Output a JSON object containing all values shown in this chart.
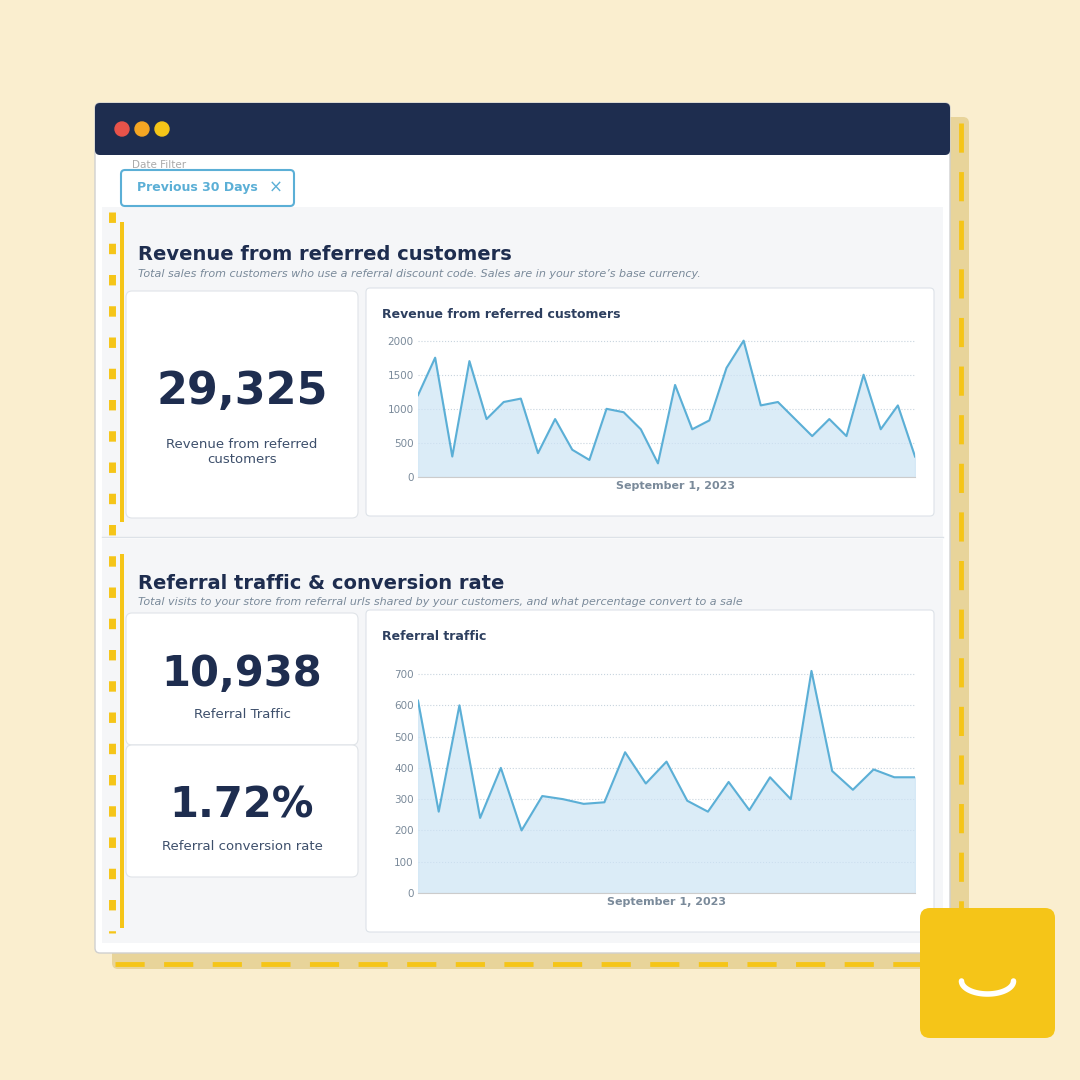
{
  "bg_color": "#faeecf",
  "window_bg": "#ffffff",
  "title_bar_color": "#1e2d4f",
  "date_filter_text": "Previous 30 Days",
  "section1_title": "Revenue from referred customers",
  "section1_subtitle": "Total sales from customers who use a referral discount code. Sales are in your store’s base currency.",
  "section1_metric_value": "29,325",
  "section1_metric_label": "Revenue from referred\ncustomers",
  "section1_chart_title": "Revenue from referred customers",
  "section1_x_label": "September 1, 2023",
  "section1_y_ticks": [
    0,
    500,
    1000,
    1500,
    2000
  ],
  "section1_data": [
    1200,
    1750,
    300,
    1700,
    850,
    1100,
    1150,
    350,
    850,
    400,
    250,
    1000,
    950,
    700,
    200,
    1350,
    700,
    830,
    1600,
    2000,
    1050,
    1100,
    850,
    600,
    850,
    600,
    1500,
    700,
    1050,
    300
  ],
  "section2_title": "Referral traffic & conversion rate",
  "section2_subtitle": "Total visits to your store from referral urls shared by your customers, and what percentage convert to a sale",
  "section2_metric1_value": "10,938",
  "section2_metric1_label": "Referral Traffic",
  "section2_metric2_value": "1.72%",
  "section2_metric2_label": "Referral conversion rate",
  "section2_chart_title": "Referral traffic",
  "section2_x_label": "September 1, 2023",
  "section2_y_ticks": [
    0,
    100,
    200,
    300,
    400,
    500,
    600,
    700
  ],
  "section2_data": [
    615,
    260,
    600,
    240,
    400,
    200,
    310,
    300,
    285,
    290,
    450,
    350,
    420,
    295,
    260,
    355,
    265,
    370,
    300,
    710,
    390,
    330,
    395,
    370,
    370
  ],
  "line_color": "#5bafd6",
  "fill_color": "#cde4f5",
  "chart_bg": "#ffffff",
  "dashed_border_color": "#f5c518",
  "left_accent_color": "#f5c518",
  "metric_value_color": "#1e2d4f",
  "metric_label_color": "#3d4f6b",
  "section_title_color": "#1e2d4f",
  "section_subtitle_color": "#7a8a9a",
  "chart_title_color": "#2d3f5f",
  "axis_label_color": "#7a8a9a",
  "grid_color": "#c8d4de",
  "smile_icon_color": "#f5c518",
  "dot_colors": [
    "#e8534a",
    "#f5a623",
    "#f5c518"
  ]
}
